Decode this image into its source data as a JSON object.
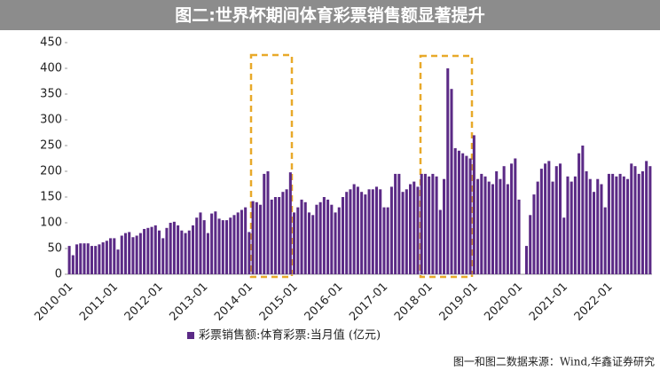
{
  "chart_data": {
    "type": "bar",
    "title": "图二:世界杯期间体育彩票销售额显著提升",
    "series": [
      {
        "name": "彩票销售额:体育彩票:当月值 (亿元)",
        "color": "#5b2a86",
        "values": [
          55,
          37,
          58,
          60,
          60,
          60,
          55,
          55,
          58,
          62,
          65,
          70,
          70,
          48,
          75,
          80,
          82,
          72,
          75,
          80,
          88,
          90,
          92,
          95,
          85,
          70,
          90,
          100,
          102,
          95,
          85,
          80,
          85,
          95,
          110,
          120,
          105,
          80,
          118,
          122,
          108,
          105,
          105,
          110,
          115,
          120,
          125,
          130,
          82,
          142,
          140,
          135,
          195,
          200,
          145,
          150,
          150,
          160,
          165,
          198,
          120,
          130,
          145,
          140,
          120,
          115,
          135,
          140,
          150,
          145,
          135,
          120,
          130,
          150,
          160,
          165,
          175,
          170,
          160,
          155,
          165,
          165,
          170,
          165,
          130,
          130,
          170,
          195,
          195,
          160,
          165,
          175,
          180,
          170,
          195,
          195,
          190,
          195,
          190,
          125,
          185,
          400,
          360,
          245,
          240,
          235,
          230,
          225,
          270,
          185,
          195,
          190,
          180,
          175,
          200,
          185,
          210,
          175,
          215,
          225,
          145,
          0,
          55,
          115,
          155,
          180,
          205,
          215,
          220,
          180,
          210,
          215,
          110,
          190,
          180,
          190,
          235,
          250,
          200,
          185,
          160,
          185,
          175,
          130,
          195,
          195,
          190,
          195,
          190,
          185,
          215,
          210,
          195,
          200,
          220,
          210
        ]
      }
    ],
    "categories": [
      "2010-01",
      null,
      null,
      null,
      null,
      null,
      null,
      null,
      null,
      null,
      null,
      null,
      "2011-01",
      null,
      null,
      null,
      null,
      null,
      null,
      null,
      null,
      null,
      null,
      null,
      "2012-01",
      null,
      null,
      null,
      null,
      null,
      null,
      null,
      null,
      null,
      null,
      null,
      "2013-01",
      null,
      null,
      null,
      null,
      null,
      null,
      null,
      null,
      null,
      null,
      null,
      "2014-01",
      null,
      null,
      null,
      null,
      null,
      null,
      null,
      null,
      null,
      null,
      null,
      "2015-01",
      null,
      null,
      null,
      null,
      null,
      null,
      null,
      null,
      null,
      null,
      null,
      "2016-01",
      null,
      null,
      null,
      null,
      null,
      null,
      null,
      null,
      null,
      null,
      null,
      "2017-01",
      null,
      null,
      null,
      null,
      null,
      null,
      null,
      null,
      null,
      null,
      null,
      "2018-01",
      null,
      null,
      null,
      null,
      null,
      null,
      null,
      null,
      null,
      null,
      null,
      "2019-01",
      null,
      null,
      null,
      null,
      null,
      null,
      null,
      null,
      null,
      null,
      null,
      "2020-01",
      null,
      null,
      null,
      null,
      null,
      null,
      null,
      null,
      null,
      null,
      null,
      "2021-01",
      null,
      null,
      null,
      null,
      null,
      null,
      null,
      null,
      null,
      null,
      null,
      "2022-01",
      null,
      null,
      null,
      null,
      null,
      null,
      null,
      null,
      null,
      null,
      null
    ],
    "ylim": [
      0,
      450
    ],
    "yticks": [
      0,
      50,
      100,
      150,
      200,
      250,
      300,
      350,
      400,
      450
    ],
    "source": "图一和图二数据来源：Wind,华鑫证券研究"
  }
}
